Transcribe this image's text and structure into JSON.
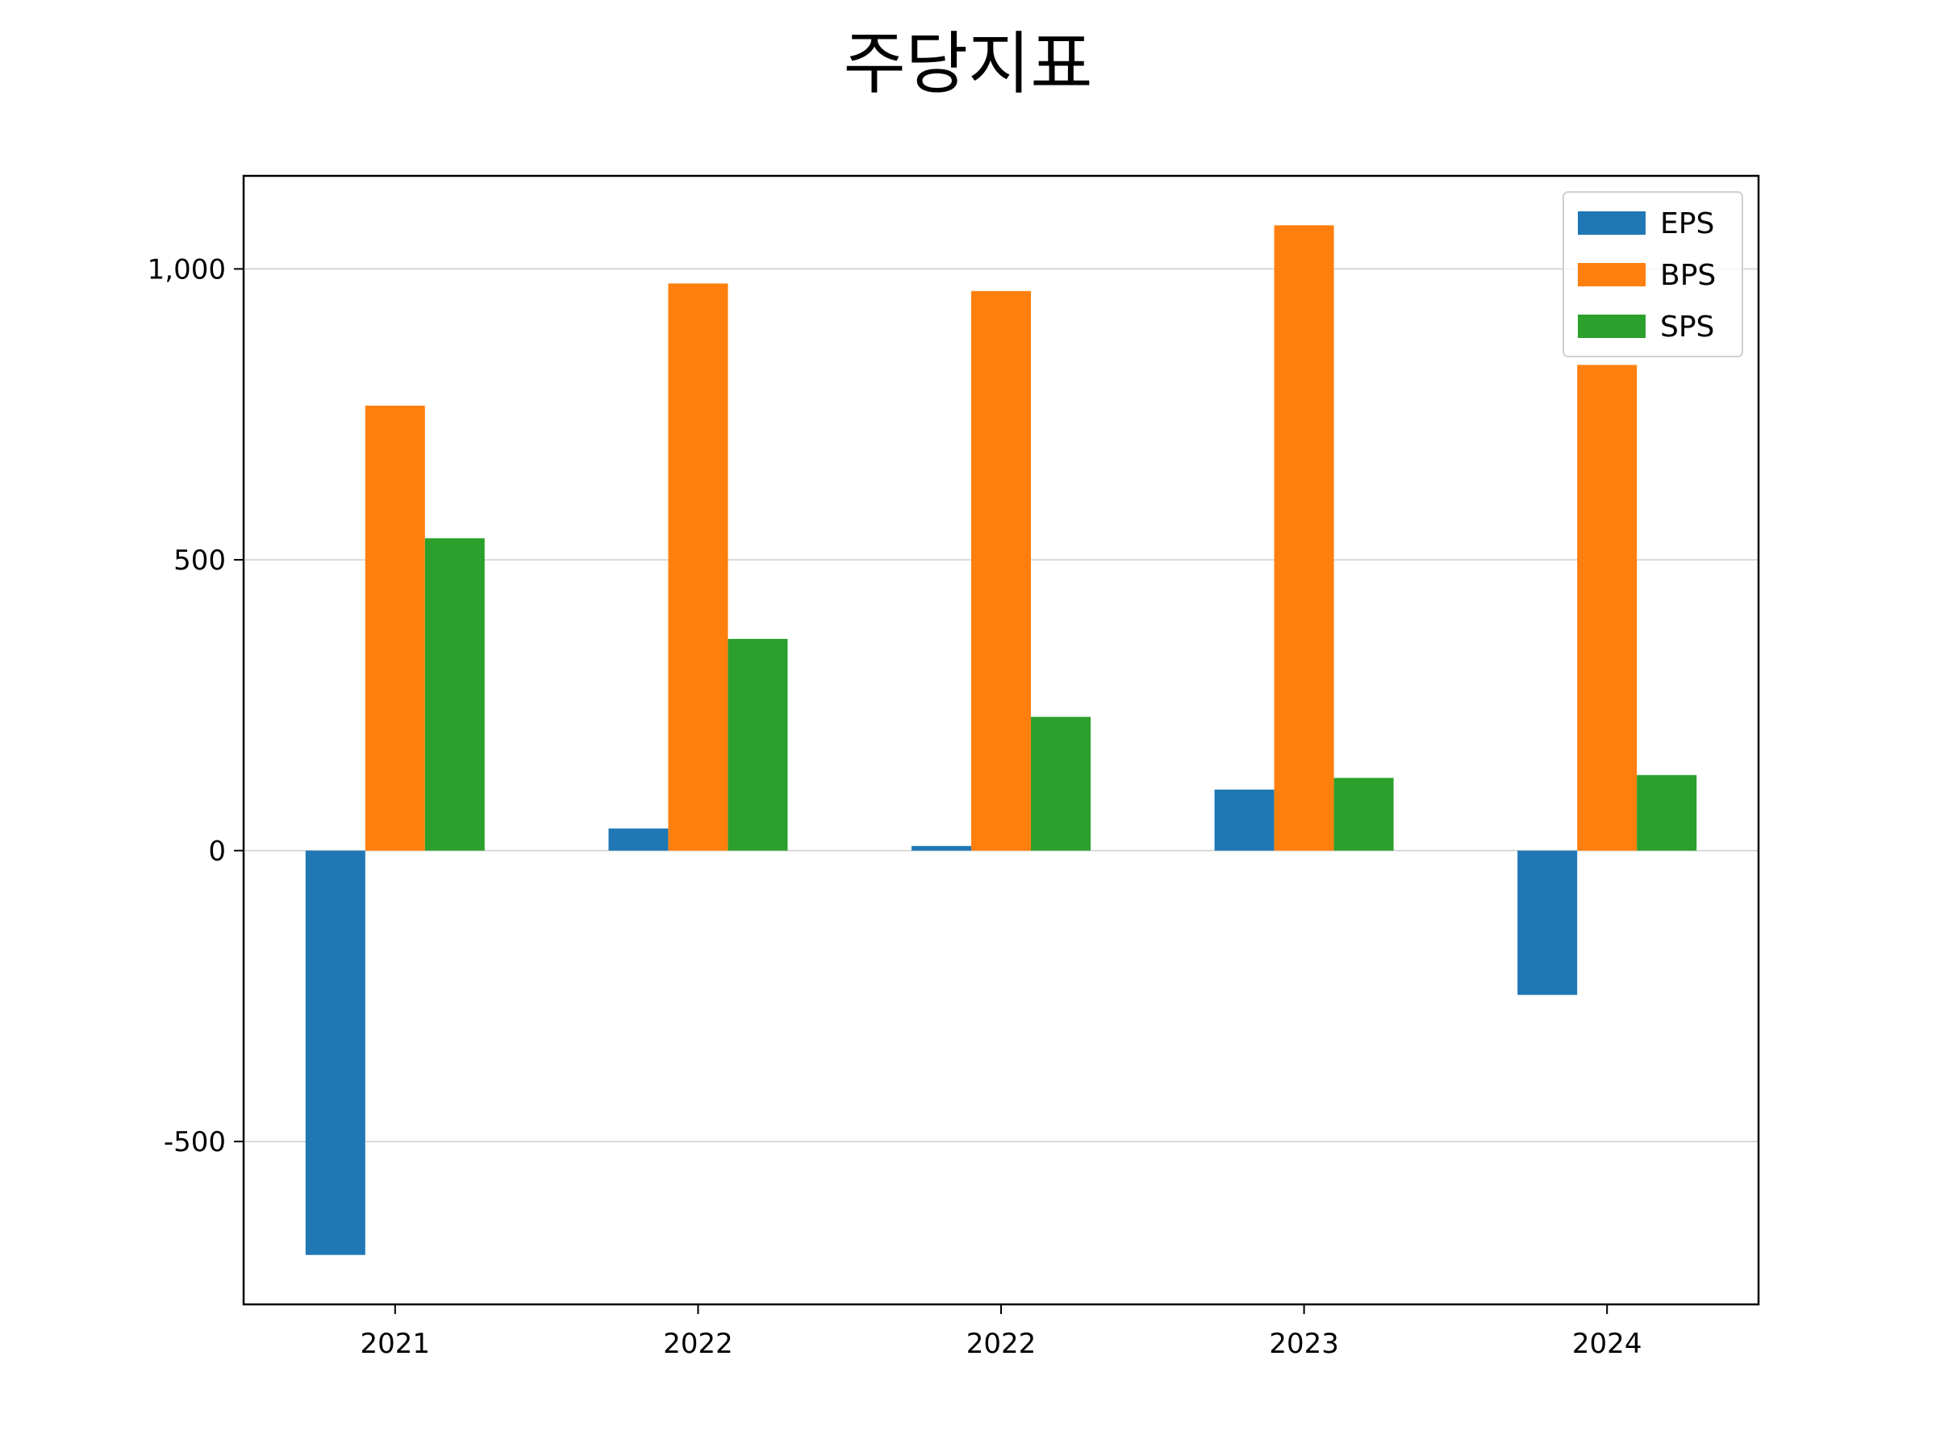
{
  "chart_data": {
    "type": "bar",
    "title": "주당지표",
    "categories": [
      "2021",
      "2022",
      "2022",
      "2023",
      "2024"
    ],
    "series": [
      {
        "name": "EPS",
        "color": "#1f77b4",
        "values": [
          -695,
          38,
          8,
          105,
          -248
        ]
      },
      {
        "name": "BPS",
        "color": "#ff7f0e",
        "values": [
          765,
          975,
          962,
          1075,
          835
        ]
      },
      {
        "name": "SPS",
        "color": "#2ca02c",
        "values": [
          537,
          364,
          230,
          125,
          130
        ]
      }
    ],
    "ylim": [
      -780,
      1160
    ],
    "yticks": [
      -500,
      0,
      500,
      1000
    ],
    "ytick_labels": [
      "-500",
      "0",
      "500",
      "1,000"
    ],
    "grid": "y",
    "legend_position": "upper right",
    "xlabel": "",
    "ylabel": ""
  }
}
